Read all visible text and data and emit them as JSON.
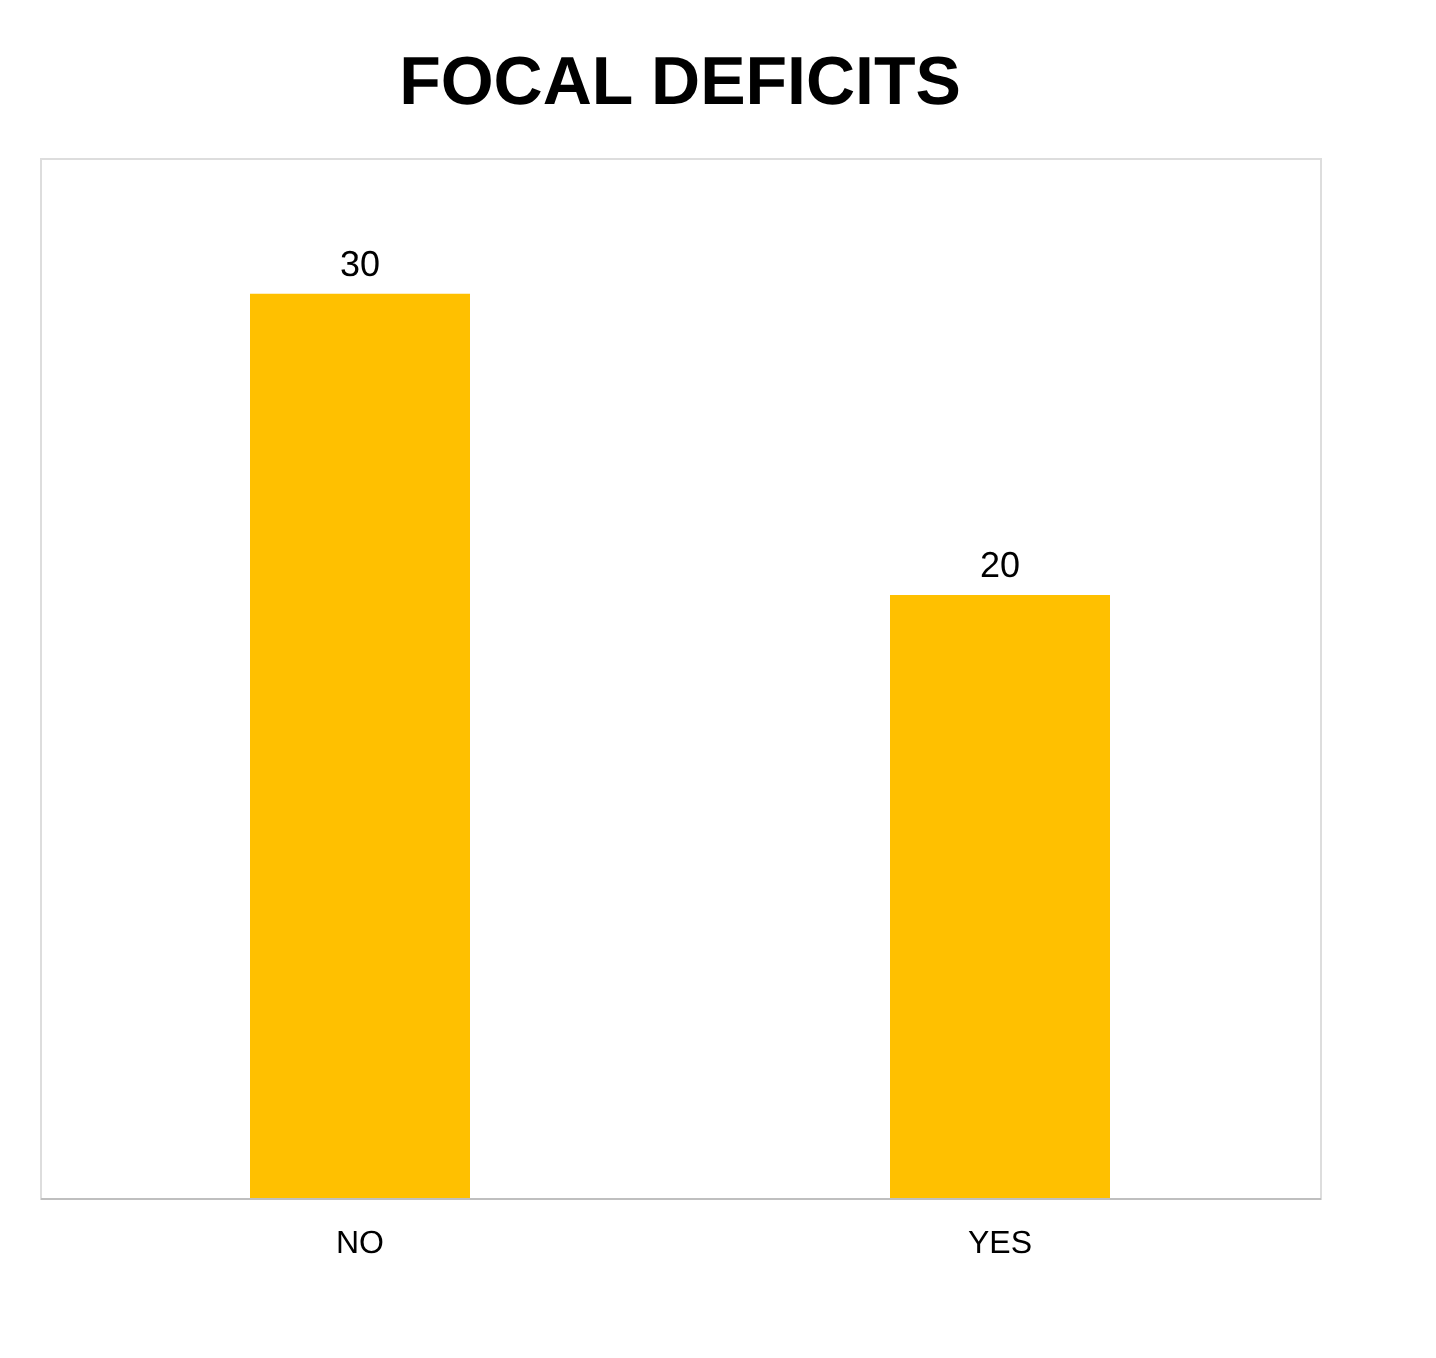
{
  "chart_data": {
    "type": "bar",
    "title": "FOCAL DEFICITS",
    "categories": [
      "NO",
      "YES"
    ],
    "values": [
      30,
      20
    ],
    "color": "#ffc000",
    "data_labels": true
  }
}
